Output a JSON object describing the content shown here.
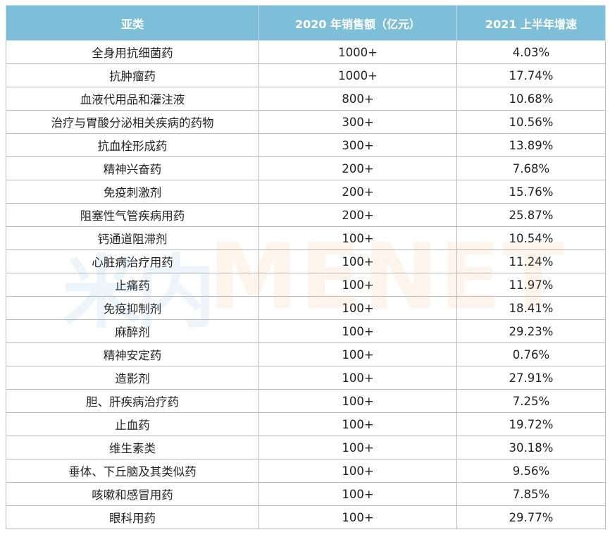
{
  "table": {
    "headers": [
      "亚类",
      "2020 年销售额（亿元）",
      "2021 上半年增速"
    ],
    "rows": [
      [
        "全身用抗细菌药",
        "1000+",
        "4.03%"
      ],
      [
        "抗肿瘤药",
        "1000+",
        "17.74%"
      ],
      [
        "血液代用品和灌注液",
        "800+",
        "10.68%"
      ],
      [
        "治疗与胃酸分泌相关疾病的药物",
        "300+",
        "10.56%"
      ],
      [
        "抗血栓形成药",
        "300+",
        "13.89%"
      ],
      [
        "精神兴奋药",
        "200+",
        "7.68%"
      ],
      [
        "免疫刺激剂",
        "200+",
        "15.76%"
      ],
      [
        "阻塞性气管疾病用药",
        "200+",
        "25.87%"
      ],
      [
        "钙通道阻滞剂",
        "100+",
        "10.54%"
      ],
      [
        "心脏病治疗用药",
        "100+",
        "11.24%"
      ],
      [
        "止痛药",
        "100+",
        "11.97%"
      ],
      [
        "免疫抑制剂",
        "100+",
        "18.41%"
      ],
      [
        "麻醉剂",
        "100+",
        "29.23%"
      ],
      [
        "精神安定药",
        "100+",
        "0.76%"
      ],
      [
        "造影剂",
        "100+",
        "27.91%"
      ],
      [
        "胆、肝疾病治疗药",
        "100+",
        "7.25%"
      ],
      [
        "止血药",
        "100+",
        "19.72%"
      ],
      [
        "维生素类",
        "100+",
        "30.18%"
      ],
      [
        "垂体、下丘脑及其类似药",
        "100+",
        "9.56%"
      ],
      [
        "咳嗽和感冒用药",
        "100+",
        "7.85%"
      ],
      [
        "眼科用药",
        "100+",
        "29.77%"
      ]
    ]
  },
  "watermark": {
    "cn": "米内",
    "en": "MENET"
  }
}
